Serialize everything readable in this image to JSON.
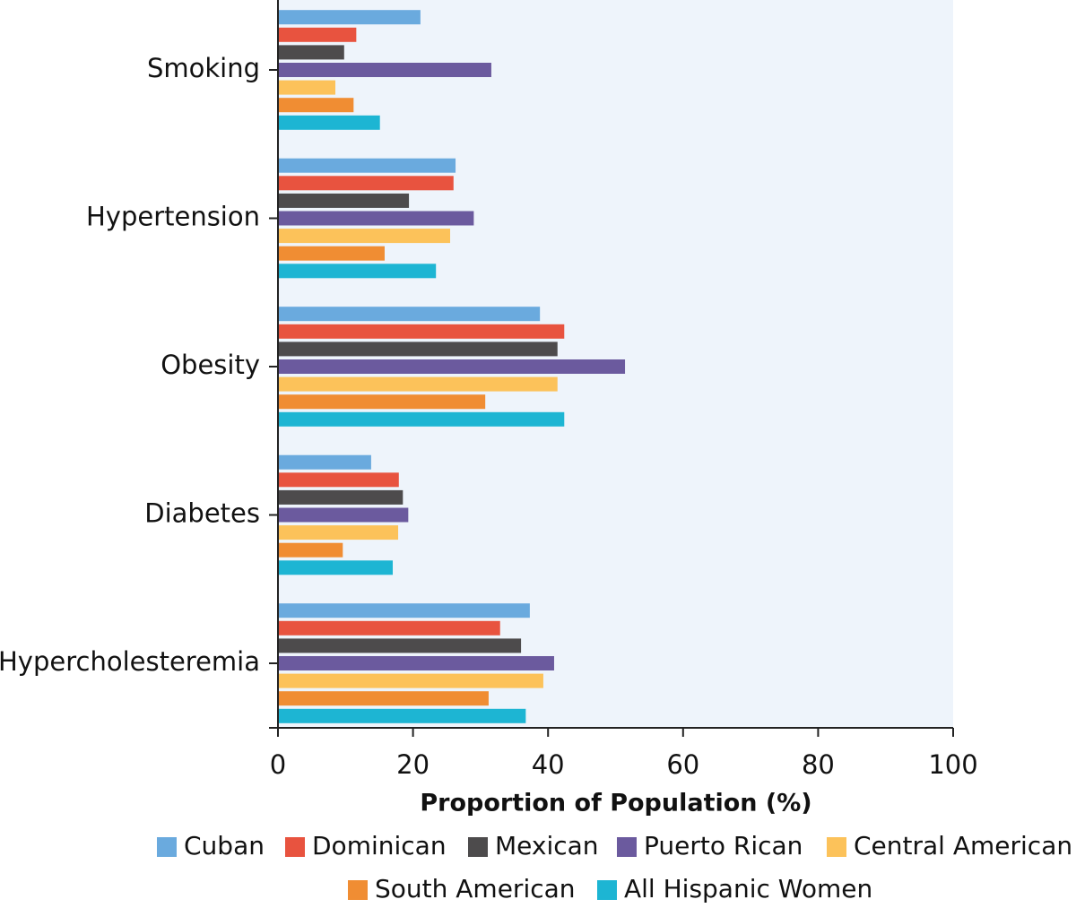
{
  "chart_data": {
    "type": "bar",
    "orientation": "horizontal",
    "x_label": "Proportion of Population (%)",
    "categories": [
      "Smoking",
      "Hypertension",
      "Obesity",
      "Diabetes",
      "Hypercholesteremia"
    ],
    "series": [
      {
        "name": "Cuban",
        "color": "#6aaade",
        "values": [
          21.1,
          26.3,
          38.8,
          13.8,
          37.3
        ]
      },
      {
        "name": "Dominican",
        "color": "#e8533f",
        "values": [
          11.6,
          26.0,
          42.4,
          17.9,
          32.9
        ]
      },
      {
        "name": "Mexican",
        "color": "#4d4b4c",
        "values": [
          9.8,
          19.4,
          41.4,
          18.5,
          36.0
        ]
      },
      {
        "name": "Puerto Rican",
        "color": "#6b5a9e",
        "values": [
          31.6,
          29.0,
          51.4,
          19.3,
          40.9
        ]
      },
      {
        "name": "Central American",
        "color": "#fcc25a",
        "values": [
          8.5,
          25.5,
          41.4,
          17.8,
          39.3
        ]
      },
      {
        "name": "South American",
        "color": "#f08d33",
        "values": [
          11.2,
          15.8,
          30.7,
          9.6,
          31.2
        ]
      },
      {
        "name": "All Hispanic Women",
        "color": "#1db5d3",
        "values": [
          15.1,
          23.4,
          42.4,
          17.0,
          36.7
        ]
      }
    ],
    "xlim": [
      0,
      100
    ],
    "xticks": [
      0,
      20,
      40,
      60,
      80,
      100
    ],
    "plot_background": "#eef4fb"
  }
}
